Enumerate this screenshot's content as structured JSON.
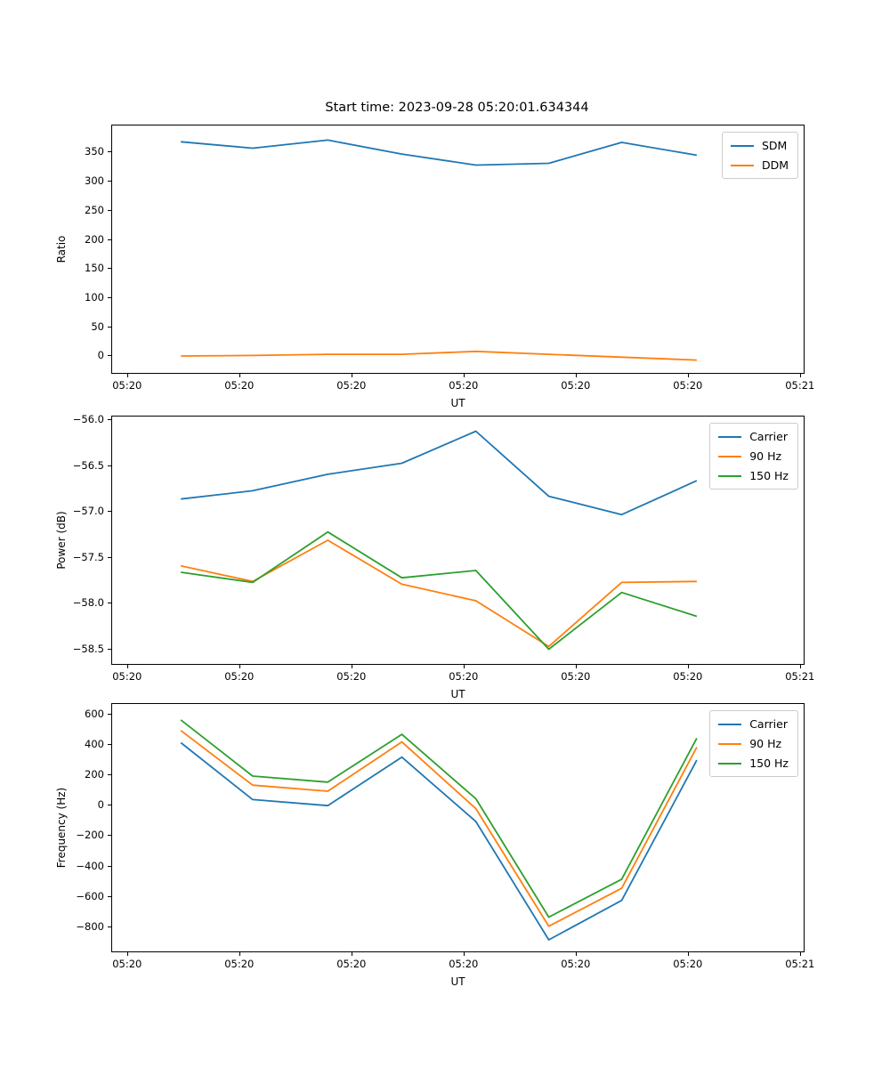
{
  "title": "Start time: 2023-09-28 05:20:01.634344",
  "palette": {
    "blue": "#1f77b4",
    "orange": "#ff7f0e",
    "green": "#2ca02c",
    "spine": "#000000",
    "legend_border": "#cccccc"
  },
  "chart_data": [
    {
      "type": "line",
      "name": "ratio-panel",
      "xlabel": "UT",
      "ylabel": "Ratio",
      "xlim": [
        -1.33,
        60.33
      ],
      "ylim": [
        -30,
        395
      ],
      "grid": false,
      "legend_position": "upper right",
      "x": [
        4.8,
        11.2,
        17.9,
        24.5,
        31.1,
        37.6,
        44.1,
        50.8
      ],
      "x_unit": "seconds after 05:20:00 UT",
      "xticks": [
        {
          "sec": 0,
          "label": "05:20"
        },
        {
          "sec": 10,
          "label": "05:20"
        },
        {
          "sec": 20,
          "label": "05:20"
        },
        {
          "sec": 30,
          "label": "05:20"
        },
        {
          "sec": 40,
          "label": "05:20"
        },
        {
          "sec": 50,
          "label": "05:20"
        },
        {
          "sec": 60,
          "label": "05:21"
        }
      ],
      "yticks": [
        {
          "value": 0,
          "label": "0"
        },
        {
          "value": 50,
          "label": "50"
        },
        {
          "value": 100,
          "label": "100"
        },
        {
          "value": 150,
          "label": "150"
        },
        {
          "value": 200,
          "label": "200"
        },
        {
          "value": 250,
          "label": "250"
        },
        {
          "value": 300,
          "label": "300"
        },
        {
          "value": 350,
          "label": "350"
        }
      ],
      "series": [
        {
          "name": "SDM",
          "color": "#1f77b4",
          "values": [
            367,
            356,
            370,
            346,
            327,
            330,
            366,
            344
          ]
        },
        {
          "name": "DDM",
          "color": "#ff7f0e",
          "values": [
            -1,
            0,
            2,
            2,
            7,
            2,
            -3,
            -8
          ]
        }
      ]
    },
    {
      "type": "line",
      "name": "power-panel",
      "xlabel": "UT",
      "ylabel": "Power (dB)",
      "xlim": [
        -1.33,
        60.33
      ],
      "ylim": [
        -58.67,
        -55.97
      ],
      "grid": false,
      "legend_position": "upper right",
      "x": [
        4.8,
        11.2,
        17.9,
        24.5,
        31.1,
        37.6,
        44.1,
        50.8
      ],
      "x_unit": "seconds after 05:20:00 UT",
      "xticks": [
        {
          "sec": 0,
          "label": "05:20"
        },
        {
          "sec": 10,
          "label": "05:20"
        },
        {
          "sec": 20,
          "label": "05:20"
        },
        {
          "sec": 30,
          "label": "05:20"
        },
        {
          "sec": 40,
          "label": "05:20"
        },
        {
          "sec": 50,
          "label": "05:20"
        },
        {
          "sec": 60,
          "label": "05:21"
        }
      ],
      "yticks": [
        {
          "value": -56.0,
          "label": "−56.0"
        },
        {
          "value": -56.5,
          "label": "−56.5"
        },
        {
          "value": -57.0,
          "label": "−57.0"
        },
        {
          "value": -57.5,
          "label": "−57.5"
        },
        {
          "value": -58.0,
          "label": "−58.0"
        },
        {
          "value": -58.5,
          "label": "−58.5"
        }
      ],
      "series": [
        {
          "name": "Carrier",
          "color": "#1f77b4",
          "values": [
            -56.87,
            -56.78,
            -56.6,
            -56.48,
            -56.13,
            -56.84,
            -57.04,
            -56.67
          ]
        },
        {
          "name": "90 Hz",
          "color": "#ff7f0e",
          "values": [
            -57.6,
            -57.77,
            -57.32,
            -57.8,
            -57.98,
            -58.48,
            -57.78,
            -57.77
          ]
        },
        {
          "name": "150 Hz",
          "color": "#2ca02c",
          "values": [
            -57.67,
            -57.78,
            -57.23,
            -57.73,
            -57.65,
            -58.51,
            -57.89,
            -58.15
          ]
        }
      ]
    },
    {
      "type": "line",
      "name": "frequency-panel",
      "xlabel": "UT",
      "ylabel": "Frequency (Hz)",
      "xlim": [
        -1.33,
        60.33
      ],
      "ylim": [
        -966,
        665
      ],
      "grid": false,
      "legend_position": "upper right",
      "x": [
        4.8,
        11.2,
        17.9,
        24.5,
        31.1,
        37.6,
        44.1,
        50.8
      ],
      "x_unit": "seconds after 05:20:00 UT",
      "xticks": [
        {
          "sec": 0,
          "label": "05:20"
        },
        {
          "sec": 10,
          "label": "05:20"
        },
        {
          "sec": 20,
          "label": "05:20"
        },
        {
          "sec": 30,
          "label": "05:20"
        },
        {
          "sec": 40,
          "label": "05:20"
        },
        {
          "sec": 50,
          "label": "05:20"
        },
        {
          "sec": 60,
          "label": "05:21"
        }
      ],
      "yticks": [
        {
          "value": 600,
          "label": "600"
        },
        {
          "value": 400,
          "label": "400"
        },
        {
          "value": 200,
          "label": "200"
        },
        {
          "value": 0,
          "label": "0"
        },
        {
          "value": -200,
          "label": "−200"
        },
        {
          "value": -400,
          "label": "−400"
        },
        {
          "value": -600,
          "label": "−600"
        },
        {
          "value": -800,
          "label": "−800"
        }
      ],
      "series": [
        {
          "name": "Carrier",
          "color": "#1f77b4",
          "values": [
            410,
            35,
            -5,
            315,
            -110,
            -890,
            -630,
            295
          ]
        },
        {
          "name": "90 Hz",
          "color": "#ff7f0e",
          "values": [
            490,
            130,
            90,
            415,
            -25,
            -800,
            -550,
            380
          ]
        },
        {
          "name": "150 Hz",
          "color": "#2ca02c",
          "values": [
            560,
            190,
            150,
            465,
            40,
            -740,
            -490,
            440
          ]
        }
      ]
    }
  ]
}
